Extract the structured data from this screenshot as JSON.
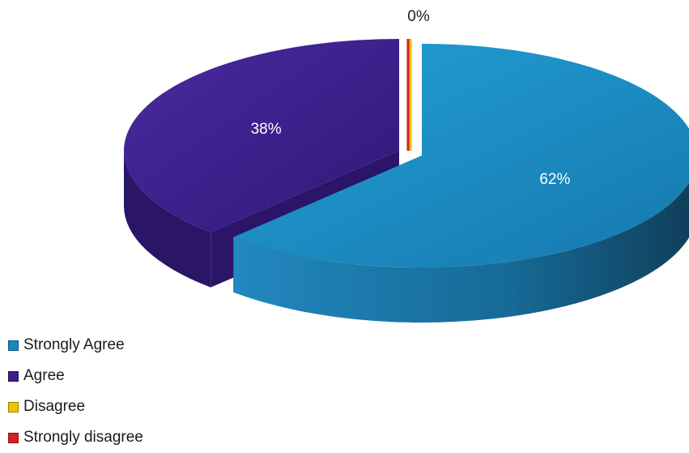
{
  "chart_data": {
    "type": "pie",
    "title": "",
    "categories": [
      "Strongly Agree",
      "Agree",
      "Disagree",
      "Strongly disagree"
    ],
    "values": [
      62,
      38,
      0,
      0
    ],
    "value_labels": [
      "62%",
      "38%",
      "0%",
      ""
    ],
    "colors": [
      "#1a86c0",
      "#3b1f8a",
      "#f2c200",
      "#d81e1e"
    ],
    "side_colors": [
      "#14628c",
      "#2a1566",
      "#b08d00",
      "#9e1515"
    ],
    "legend_position": "bottom-left",
    "three_d": true,
    "exploded": true
  }
}
